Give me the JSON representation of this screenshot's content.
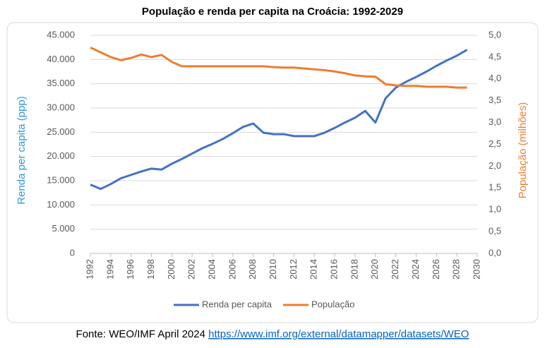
{
  "chart_data": {
    "type": "line",
    "title": "População e renda per capita na Croácia: 1992-2029",
    "ylabel": "Renda per capita (ppp)",
    "y2label": "População (milhões)",
    "ylabel_color": "#2e9ad6",
    "y2label_color": "#ed7d31",
    "source": "Fonte: WEO/IMF April 2024",
    "source_url": "https://www.imf.org/external/datamapper/datasets/WEO",
    "x": [
      1992,
      1993,
      1994,
      1995,
      1996,
      1997,
      1998,
      1999,
      2000,
      2001,
      2002,
      2003,
      2004,
      2005,
      2006,
      2007,
      2008,
      2009,
      2010,
      2011,
      2012,
      2013,
      2014,
      2015,
      2016,
      2017,
      2018,
      2019,
      2020,
      2021,
      2022,
      2023,
      2024,
      2025,
      2026,
      2027,
      2028,
      2029
    ],
    "xlim": [
      1992,
      2030
    ],
    "xticks": [
      1992,
      1994,
      1996,
      1998,
      2000,
      2002,
      2004,
      2006,
      2008,
      2010,
      2012,
      2014,
      2016,
      2018,
      2020,
      2022,
      2024,
      2026,
      2028,
      2030
    ],
    "ylim": [
      0,
      45000
    ],
    "yticks": [
      0,
      {
        "value": 5000,
        "label": "5.000"
      },
      {
        "value": 10000,
        "label": "10.000"
      },
      {
        "value": 15000,
        "label": "15.000"
      },
      {
        "value": 20000,
        "label": "20.000"
      },
      {
        "value": 25000,
        "label": "25.000"
      },
      {
        "value": 30000,
        "label": "30.000"
      },
      {
        "value": 35000,
        "label": "35.000"
      },
      {
        "value": 40000,
        "label": "40.000"
      },
      {
        "value": 45000,
        "label": "45.000"
      }
    ],
    "y2lim": [
      0,
      5
    ],
    "y2ticks": [
      {
        "value": 0,
        "label": "0,0"
      },
      {
        "value": 0.5,
        "label": "0,5"
      },
      {
        "value": 1,
        "label": "1,0"
      },
      {
        "value": 1.5,
        "label": "1,5"
      },
      {
        "value": 2,
        "label": "2,0"
      },
      {
        "value": 2.5,
        "label": "2,5"
      },
      {
        "value": 3,
        "label": "3,0"
      },
      {
        "value": 3.5,
        "label": "3,5"
      },
      {
        "value": 4,
        "label": "4,0"
      },
      {
        "value": 4.5,
        "label": "4,5"
      },
      {
        "value": 5,
        "label": "5,0"
      }
    ],
    "grid": true,
    "series": [
      {
        "name": "Renda per capita",
        "color": "#4472c4",
        "values": [
          14200,
          13300,
          14300,
          15500,
          16200,
          16900,
          17500,
          17300,
          18500,
          19500,
          20600,
          21700,
          22600,
          23600,
          24800,
          26100,
          26800,
          24900,
          24600,
          24600,
          24200,
          24200,
          24200,
          24900,
          25900,
          27000,
          28000,
          29400,
          27000,
          32000,
          34200,
          35400,
          36400,
          37500,
          38700,
          39800,
          40800,
          42000
        ]
      },
      {
        "name": "População",
        "color": "#ed7d31",
        "axis": "y2",
        "values": [
          4.72,
          4.61,
          4.5,
          4.43,
          4.48,
          4.56,
          4.5,
          4.55,
          4.39,
          4.29,
          4.29,
          4.29,
          4.29,
          4.29,
          4.29,
          4.29,
          4.29,
          4.29,
          4.27,
          4.26,
          4.26,
          4.24,
          4.22,
          4.2,
          4.17,
          4.13,
          4.08,
          4.06,
          4.05,
          3.88,
          3.85,
          3.84,
          3.84,
          3.82,
          3.82,
          3.82,
          3.8,
          3.8
        ]
      }
    ]
  }
}
